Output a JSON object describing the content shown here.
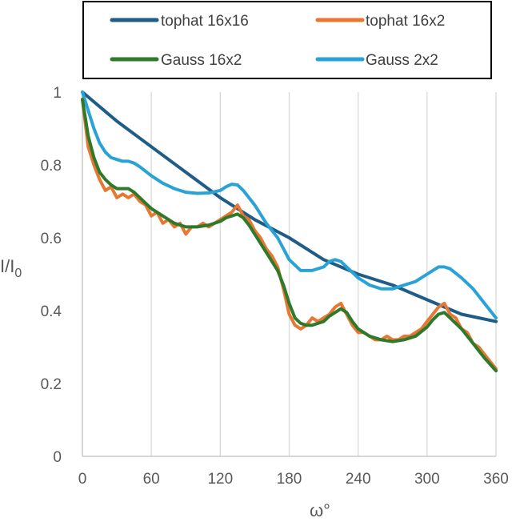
{
  "chart_data": {
    "type": "line",
    "xlabel": "ω°",
    "ylabel_main": "I/I",
    "ylabel_sub": "0",
    "xlim": [
      0,
      360
    ],
    "ylim": [
      0,
      1
    ],
    "xticks": [
      "0",
      "60",
      "120",
      "180",
      "240",
      "300",
      "360"
    ],
    "yticks": [
      "0",
      "0.2",
      "0.4",
      "0.6",
      "0.8",
      "1"
    ],
    "grid": "vertical",
    "legend_position": "top",
    "series": [
      {
        "name": "tophat 16x16",
        "color": "#1f5c87",
        "x": [
          0,
          30,
          60,
          90,
          120,
          150,
          180,
          210,
          240,
          270,
          300,
          330,
          360
        ],
        "y": [
          1.0,
          0.92,
          0.85,
          0.78,
          0.71,
          0.65,
          0.6,
          0.54,
          0.5,
          0.47,
          0.43,
          0.39,
          0.37
        ]
      },
      {
        "name": "tophat 16x2",
        "color": "#e87733",
        "x": [
          0,
          5,
          10,
          15,
          20,
          25,
          30,
          35,
          40,
          45,
          50,
          55,
          60,
          65,
          70,
          75,
          80,
          85,
          90,
          95,
          100,
          105,
          110,
          115,
          120,
          125,
          130,
          135,
          140,
          145,
          150,
          155,
          160,
          165,
          170,
          175,
          180,
          185,
          190,
          195,
          200,
          205,
          210,
          215,
          220,
          225,
          230,
          235,
          240,
          245,
          250,
          255,
          260,
          265,
          270,
          275,
          280,
          285,
          290,
          295,
          300,
          305,
          310,
          315,
          320,
          325,
          330,
          335,
          340,
          345,
          350,
          355,
          360
        ],
        "y": [
          0.98,
          0.85,
          0.8,
          0.76,
          0.73,
          0.74,
          0.71,
          0.72,
          0.71,
          0.72,
          0.7,
          0.69,
          0.66,
          0.67,
          0.64,
          0.65,
          0.63,
          0.64,
          0.61,
          0.63,
          0.63,
          0.64,
          0.63,
          0.64,
          0.65,
          0.66,
          0.67,
          0.69,
          0.66,
          0.65,
          0.62,
          0.6,
          0.57,
          0.55,
          0.52,
          0.46,
          0.39,
          0.36,
          0.35,
          0.36,
          0.38,
          0.37,
          0.38,
          0.39,
          0.41,
          0.42,
          0.39,
          0.36,
          0.34,
          0.34,
          0.33,
          0.32,
          0.32,
          0.33,
          0.32,
          0.32,
          0.33,
          0.33,
          0.34,
          0.35,
          0.37,
          0.39,
          0.41,
          0.42,
          0.39,
          0.38,
          0.35,
          0.34,
          0.31,
          0.3,
          0.28,
          0.26,
          0.24
        ]
      },
      {
        "name": "Gauss 16x2",
        "color": "#2e7a2a",
        "x": [
          0,
          5,
          10,
          15,
          20,
          25,
          30,
          35,
          40,
          45,
          50,
          55,
          60,
          70,
          80,
          90,
          100,
          110,
          120,
          125,
          130,
          135,
          140,
          145,
          150,
          160,
          170,
          175,
          180,
          185,
          190,
          195,
          200,
          205,
          210,
          215,
          220,
          225,
          230,
          235,
          240,
          250,
          260,
          270,
          280,
          290,
          300,
          305,
          310,
          315,
          320,
          330,
          340,
          350,
          360
        ],
        "y": [
          0.98,
          0.88,
          0.82,
          0.78,
          0.76,
          0.745,
          0.735,
          0.735,
          0.735,
          0.725,
          0.71,
          0.695,
          0.68,
          0.66,
          0.64,
          0.63,
          0.63,
          0.635,
          0.645,
          0.655,
          0.66,
          0.665,
          0.655,
          0.635,
          0.61,
          0.56,
          0.51,
          0.47,
          0.42,
          0.38,
          0.365,
          0.36,
          0.36,
          0.365,
          0.37,
          0.385,
          0.395,
          0.405,
          0.395,
          0.37,
          0.35,
          0.33,
          0.32,
          0.315,
          0.32,
          0.33,
          0.355,
          0.375,
          0.39,
          0.395,
          0.38,
          0.35,
          0.31,
          0.27,
          0.235
        ]
      },
      {
        "name": "Gauss 2x2",
        "color": "#29a3d6",
        "x": [
          0,
          5,
          10,
          15,
          20,
          25,
          30,
          35,
          40,
          45,
          50,
          60,
          70,
          80,
          90,
          100,
          110,
          120,
          125,
          130,
          135,
          140,
          150,
          160,
          170,
          180,
          190,
          200,
          210,
          215,
          220,
          225,
          230,
          240,
          250,
          260,
          270,
          280,
          290,
          300,
          305,
          310,
          315,
          320,
          330,
          340,
          350,
          360
        ],
        "y": [
          1.0,
          0.95,
          0.9,
          0.86,
          0.835,
          0.82,
          0.815,
          0.81,
          0.81,
          0.805,
          0.795,
          0.77,
          0.75,
          0.735,
          0.725,
          0.722,
          0.723,
          0.73,
          0.74,
          0.747,
          0.745,
          0.73,
          0.69,
          0.64,
          0.6,
          0.54,
          0.51,
          0.51,
          0.52,
          0.535,
          0.54,
          0.535,
          0.52,
          0.49,
          0.47,
          0.46,
          0.46,
          0.47,
          0.48,
          0.5,
          0.51,
          0.52,
          0.52,
          0.515,
          0.49,
          0.46,
          0.42,
          0.38
        ]
      }
    ]
  }
}
